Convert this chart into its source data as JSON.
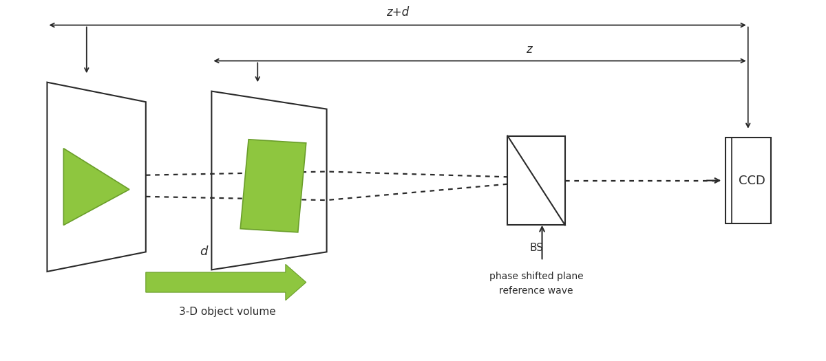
{
  "bg_color": "#ffffff",
  "line_color": "#2a2a2a",
  "green_fill": "#8ec63f",
  "green_fill_dark": "#6a9e2a",
  "green_arrow_body": "#8ec63f",
  "text_color": "#2a2a2a",
  "orange_text": "#c8820a",
  "figure_size": [
    12.0,
    5.25
  ],
  "dpi": 100,
  "z_label": "z",
  "zd_label": "z+d",
  "d_label": "d",
  "obj_label": "3-D object volume",
  "bs_label": "BS",
  "phase_label": "phase shifted plane\nreference wave",
  "ccd_label": "CCD"
}
